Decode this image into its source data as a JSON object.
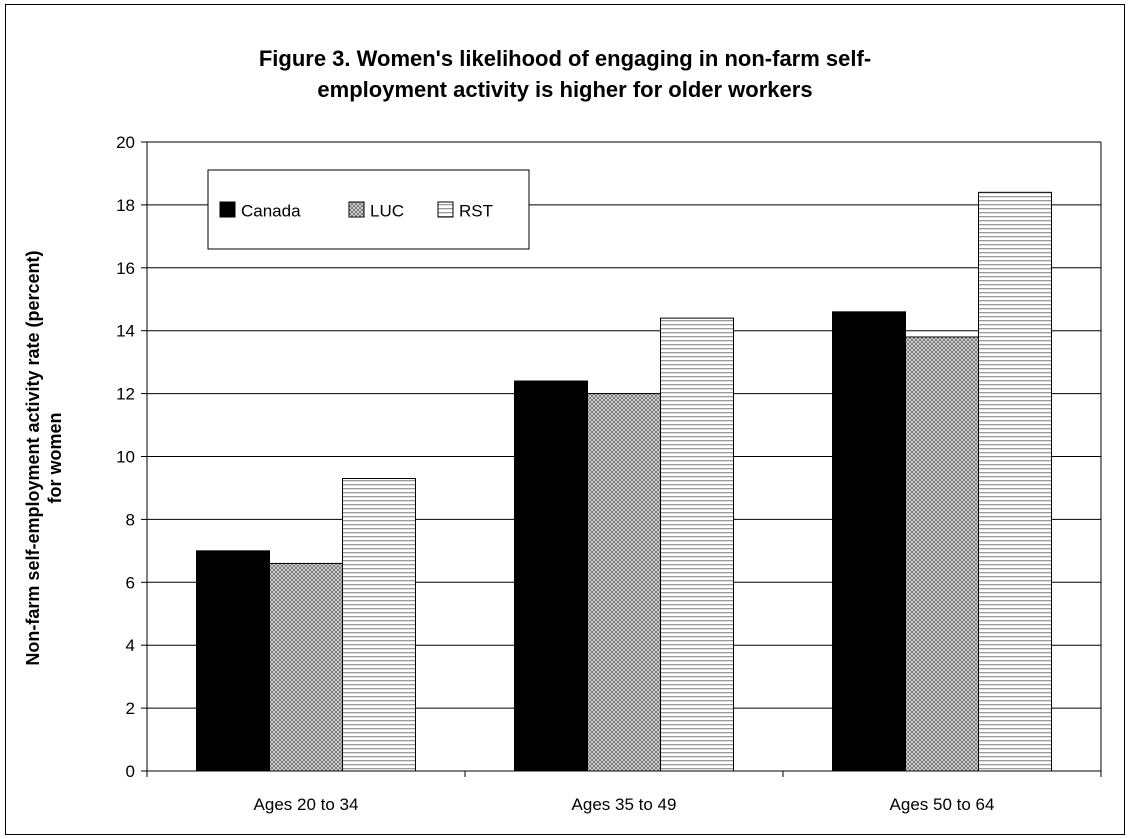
{
  "chart_data": {
    "type": "bar",
    "title_lines": [
      "Figure 3.  Women's likelihood of engaging in non-farm self-",
      "employment activity is higher for older workers"
    ],
    "ylabel_lines": [
      "Non-farm self-employment activity rate (percent)",
      "for women"
    ],
    "xlabel": "",
    "categories": [
      "Ages 20 to 34",
      "Ages 35 to 49",
      "Ages 50 to 64"
    ],
    "series": [
      {
        "name": "Canada",
        "values": [
          7.0,
          12.4,
          14.6
        ],
        "pattern": "solid",
        "color": "#000000"
      },
      {
        "name": "LUC",
        "values": [
          6.6,
          12.0,
          13.8
        ],
        "pattern": "crosshatch",
        "color": "#808080"
      },
      {
        "name": "RST",
        "values": [
          9.3,
          14.4,
          18.4
        ],
        "pattern": "horizontal-stripes",
        "color": "#c0c0c0"
      }
    ],
    "ylim": [
      0,
      20
    ],
    "yticks": [
      "0",
      "2",
      "4",
      "6",
      "8",
      "10",
      "12",
      "14",
      "16",
      "18",
      "20"
    ],
    "grid": true,
    "legend_position": "top-left"
  }
}
